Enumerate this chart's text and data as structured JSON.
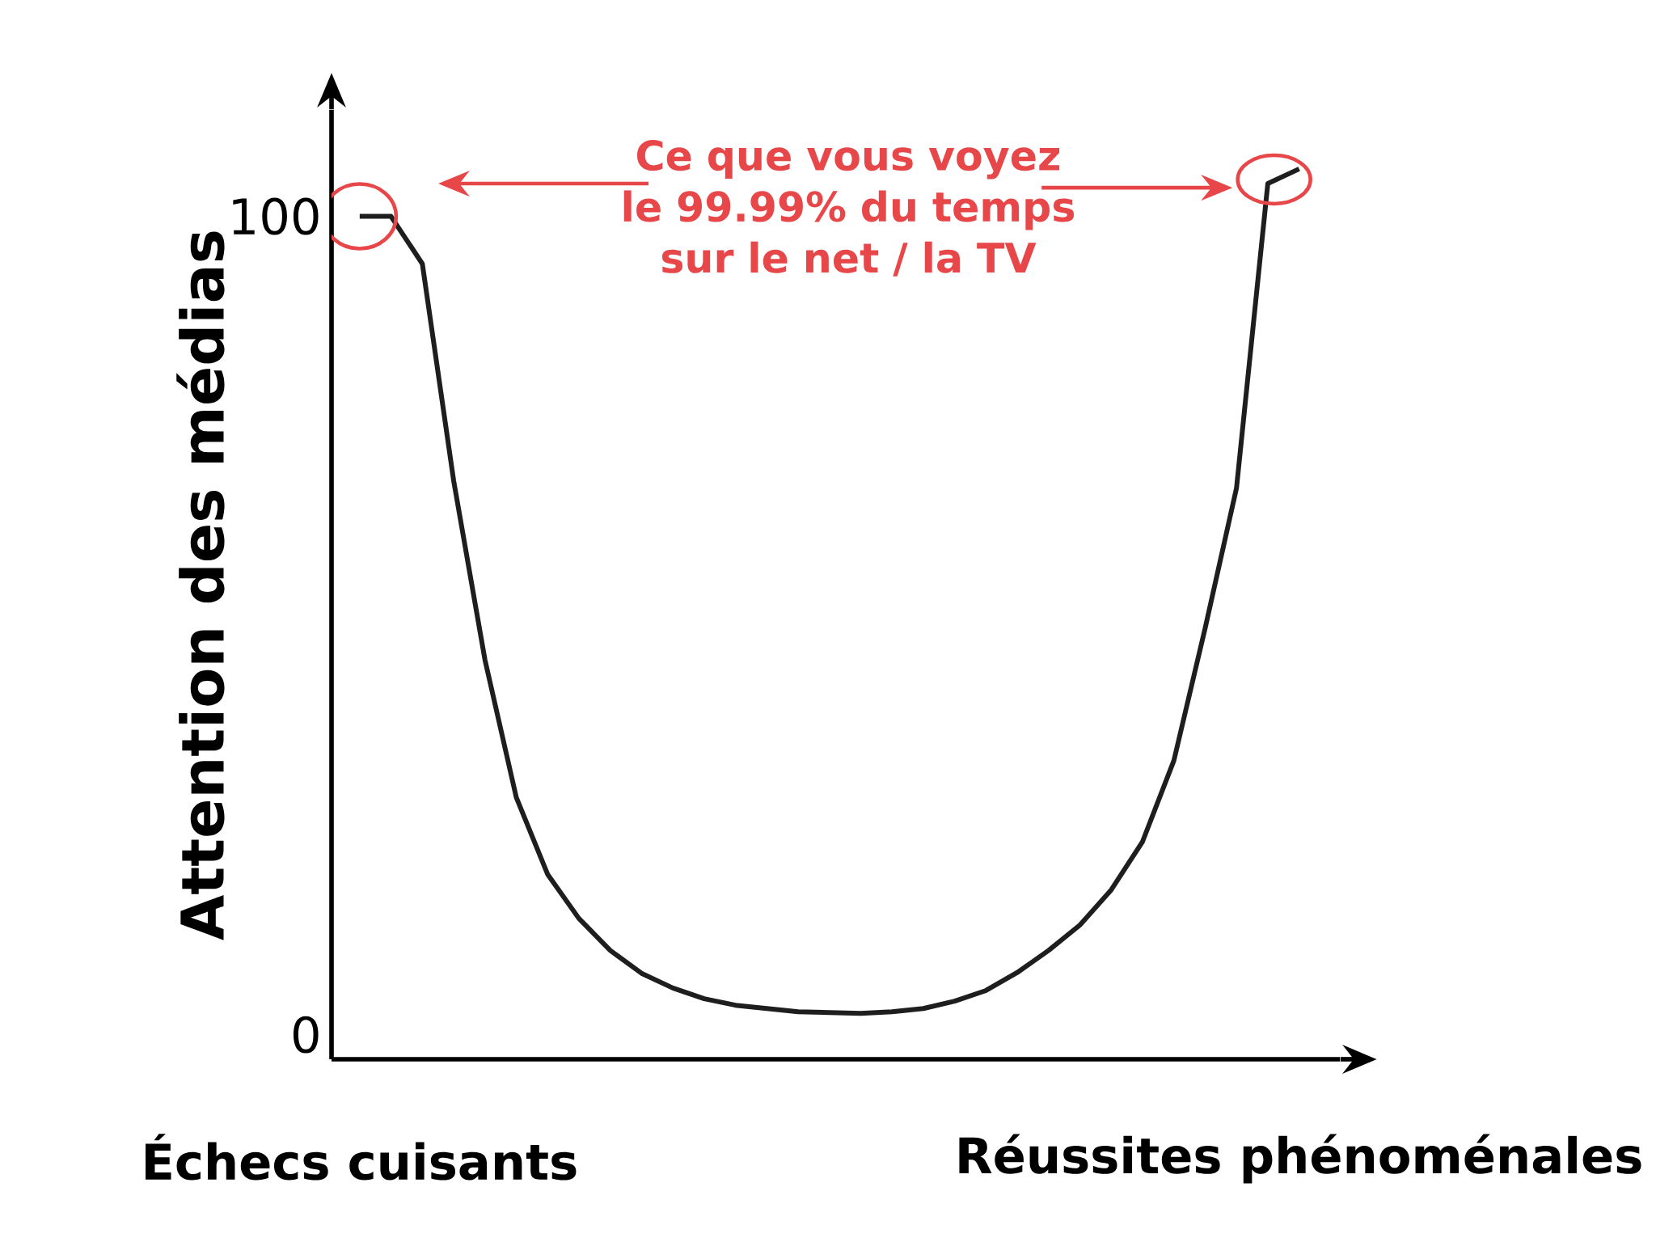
{
  "chart_data": {
    "type": "line",
    "ylabel": "Attention des médias",
    "ylim": [
      -3,
      113
    ],
    "categories": [
      "Échecs cuisants",
      null,
      null,
      null,
      null,
      null,
      null,
      null,
      null,
      null,
      null,
      null,
      null,
      null,
      null,
      null,
      null,
      null,
      null,
      null,
      null,
      null,
      null,
      null,
      null,
      null,
      null,
      null,
      null,
      null,
      "Réussites phénoménales"
    ],
    "yticks": [
      0,
      100
    ],
    "annotations": [
      "Ce que vous voyez le 99.99% du temps sur le net / la TV"
    ],
    "series": [
      {
        "color": "#1e1e1e",
        "values": [
          100,
          100,
          94.2,
          67.7,
          45.8,
          29,
          19.6,
          14.2,
          10.3,
          7.5,
          5.7,
          4.4,
          3.6,
          3.2,
          2.8,
          2.7,
          2.6,
          2.8,
          3.2,
          4.1,
          5.4,
          7.6,
          10.3,
          13.4,
          17.7,
          23.6,
          33.5,
          49.7,
          66.8,
          104,
          105.8
        ]
      }
    ]
  }
}
